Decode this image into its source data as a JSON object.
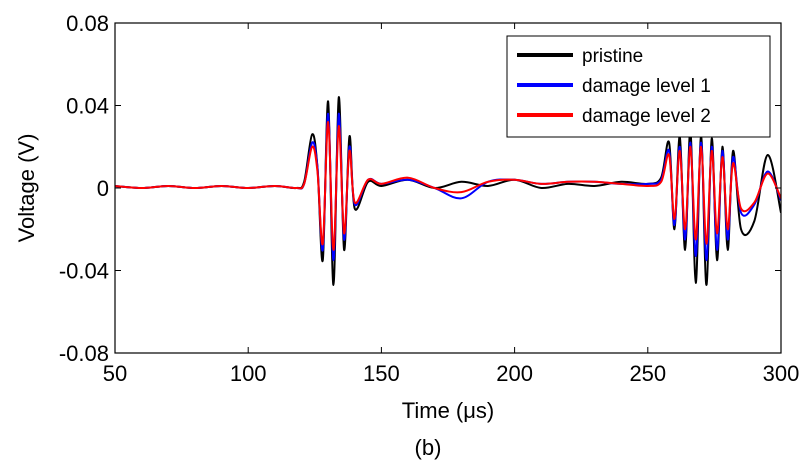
{
  "chart_data": {
    "type": "line",
    "title": "",
    "xlabel": "Time (μs)",
    "ylabel": "Voltage (V)",
    "caption": "(b)",
    "xlim": [
      50,
      300
    ],
    "ylim": [
      -0.08,
      0.08
    ],
    "xticks": [
      50,
      100,
      150,
      200,
      250,
      300
    ],
    "xtick_labels": [
      "50",
      "100",
      "150",
      "200",
      "250",
      "300"
    ],
    "yticks": [
      -0.08,
      -0.04,
      0,
      0.04,
      0.08
    ],
    "ytick_labels": [
      "-0.08",
      "-0.04",
      "0",
      "0.04",
      "0.08"
    ],
    "grid": false,
    "legend_position": "top-right",
    "series": [
      {
        "name": "pristine",
        "color": "#000000",
        "x": [
          50,
          60,
          70,
          80,
          90,
          100,
          110,
          118,
          121,
          124,
          126,
          128,
          130,
          132,
          134,
          136,
          138,
          140,
          145,
          150,
          160,
          170,
          180,
          190,
          200,
          210,
          220,
          230,
          240,
          250,
          255,
          258,
          260,
          262,
          264,
          266,
          268,
          270,
          272,
          274,
          276,
          278,
          280,
          282,
          285,
          290,
          295,
          300
        ],
        "y": [
          0.001,
          0,
          0.001,
          0,
          0.001,
          0,
          0.001,
          0,
          0.003,
          0.026,
          0.01,
          -0.035,
          0.042,
          -0.047,
          0.044,
          -0.03,
          0.025,
          -0.01,
          0.003,
          0.001,
          0.004,
          0,
          0.003,
          0.001,
          0.004,
          0,
          0.002,
          0.001,
          0.003,
          0.002,
          0.005,
          0.022,
          -0.02,
          0.025,
          -0.03,
          0.028,
          -0.046,
          0.025,
          -0.047,
          0.024,
          -0.035,
          0.02,
          -0.03,
          0.018,
          -0.02,
          -0.016,
          0.016,
          -0.012
        ]
      },
      {
        "name": "damage level 1",
        "color": "#0000ff",
        "x": [
          50,
          60,
          70,
          80,
          90,
          100,
          110,
          118,
          121,
          124,
          126,
          128,
          130,
          132,
          134,
          136,
          138,
          140,
          145,
          150,
          160,
          170,
          180,
          190,
          200,
          210,
          220,
          230,
          240,
          250,
          255,
          258,
          260,
          262,
          264,
          266,
          268,
          270,
          272,
          274,
          276,
          278,
          280,
          282,
          285,
          290,
          295,
          300
        ],
        "y": [
          0.001,
          0,
          0.001,
          0,
          0.001,
          0,
          0.001,
          0,
          0.002,
          0.022,
          0.01,
          -0.03,
          0.036,
          -0.035,
          0.036,
          -0.025,
          0.02,
          -0.008,
          0.004,
          0.002,
          0.004,
          0,
          -0.005,
          0.003,
          0.004,
          0.002,
          0.003,
          0.003,
          0.002,
          0.002,
          0.004,
          0.018,
          -0.018,
          0.02,
          -0.025,
          0.022,
          -0.033,
          0.022,
          -0.035,
          0.02,
          -0.03,
          0.018,
          -0.025,
          0.015,
          -0.012,
          -0.008,
          0.008,
          -0.006
        ]
      },
      {
        "name": "damage level 2",
        "color": "#ff0000",
        "x": [
          50,
          60,
          70,
          80,
          90,
          100,
          110,
          118,
          121,
          124,
          126,
          128,
          130,
          132,
          134,
          136,
          138,
          140,
          145,
          150,
          160,
          170,
          180,
          190,
          200,
          210,
          220,
          230,
          240,
          250,
          255,
          258,
          260,
          262,
          264,
          266,
          268,
          270,
          272,
          274,
          276,
          278,
          280,
          282,
          285,
          290,
          295,
          300
        ],
        "y": [
          0.001,
          0,
          0.001,
          0,
          0.001,
          0,
          0.001,
          0,
          0.002,
          0.02,
          0.008,
          -0.027,
          0.032,
          -0.03,
          0.03,
          -0.022,
          0.018,
          -0.007,
          0.004,
          0.002,
          0.005,
          0,
          -0.002,
          0.003,
          0.004,
          0.002,
          0.003,
          0.003,
          0.002,
          0.001,
          0.003,
          0.016,
          -0.015,
          0.018,
          -0.02,
          0.02,
          -0.025,
          0.02,
          -0.027,
          0.018,
          -0.022,
          0.015,
          -0.02,
          0.012,
          -0.01,
          -0.007,
          0.007,
          -0.005
        ]
      }
    ]
  }
}
